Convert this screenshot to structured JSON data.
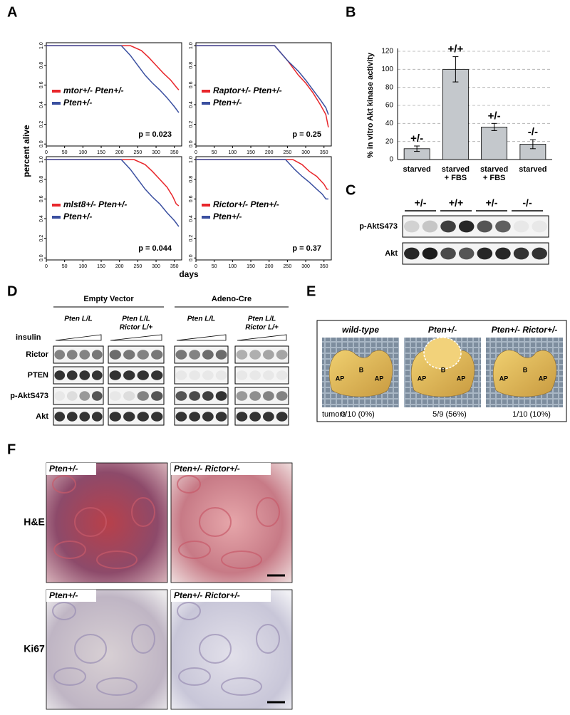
{
  "panel_a": {
    "label": "A",
    "y_axis_label": "percent alive",
    "x_axis_label": "days"
  },
  "panel_b": {
    "label": "B"
  },
  "panel_c": {
    "label": "C",
    "genotypes": [
      "+/-",
      "+/+",
      "+/-",
      "-/-"
    ],
    "rows": [
      "p-AktS473",
      "Akt"
    ]
  },
  "panel_d": {
    "label": "D",
    "treatment": "insulin",
    "rows": [
      "Rictor",
      "PTEN",
      "p-AktS473",
      "Akt"
    ],
    "groups": [
      {
        "title": "Empty Vector",
        "genotypes": [
          [
            "Pten L/L"
          ],
          [
            "Pten L/L",
            "Rictor L/+"
          ]
        ]
      },
      {
        "title": "Adeno-Cre",
        "genotypes": [
          [
            "Pten L/L"
          ],
          [
            "Pten L/L",
            "Rictor L/+"
          ]
        ]
      }
    ]
  },
  "panel_e": {
    "label": "E",
    "row_label": "tumors",
    "region_labels": [
      "AP",
      "B"
    ],
    "columns": [
      {
        "title": "wild-type",
        "tumors": "0/10 (0%)"
      },
      {
        "title": "Pten+/-",
        "tumors": "5/9 (56%)"
      },
      {
        "title": "Pten+/- Rictor+/-",
        "tumors": "1/10 (10%)"
      }
    ]
  },
  "panel_f": {
    "label": "F",
    "columns": [
      "Pten+/-",
      "Pten+/- Rictor+/-"
    ],
    "rows": [
      "H&E",
      "Ki67"
    ]
  },
  "chart_data": [
    {
      "type": "line",
      "annotation": "p = 0.023",
      "xlim": [
        0,
        370
      ],
      "ylim": [
        -0.02,
        1.03
      ],
      "xticks": [
        0,
        50,
        100,
        150,
        200,
        250,
        300,
        350
      ],
      "yticks": [
        {
          "value": 0,
          "label": "0.0"
        },
        {
          "value": 0.2,
          "label": "0.2"
        },
        {
          "value": 0.4,
          "label": "0.4"
        },
        {
          "value": 0.6,
          "label": "0.6"
        },
        {
          "value": 0.8,
          "label": "0.8"
        },
        {
          "value": 1,
          "label": "1.0"
        }
      ],
      "series": [
        {
          "name": "mtor+/- Pten+/-",
          "color": "#e8262b",
          "x": [
            0,
            230,
            260,
            280,
            300,
            320,
            340,
            355,
            362
          ],
          "values": [
            1,
            1,
            0.95,
            0.88,
            0.8,
            0.72,
            0.65,
            0.58,
            0.55
          ]
        },
        {
          "name": "Pten+/-",
          "color": "#3a4fa0",
          "x": [
            0,
            205,
            230,
            250,
            270,
            290,
            310,
            330,
            350,
            362
          ],
          "values": [
            1,
            1,
            0.9,
            0.8,
            0.7,
            0.62,
            0.55,
            0.47,
            0.38,
            0.32
          ]
        }
      ]
    },
    {
      "type": "line",
      "annotation": "p = 0.25",
      "xlim": [
        0,
        370
      ],
      "ylim": [
        -0.02,
        1.03
      ],
      "xticks": [
        0,
        50,
        100,
        150,
        200,
        250,
        300,
        350
      ],
      "yticks": [
        {
          "value": 0,
          "label": "0.0"
        },
        {
          "value": 0.2,
          "label": "0.2"
        },
        {
          "value": 0.4,
          "label": "0.4"
        },
        {
          "value": 0.6,
          "label": "0.6"
        },
        {
          "value": 0.8,
          "label": "0.8"
        },
        {
          "value": 1,
          "label": "1.0"
        }
      ],
      "series": [
        {
          "name": "Raptor+/- Pten+/-",
          "color": "#e8262b",
          "x": [
            0,
            215,
            250,
            280,
            300,
            320,
            340,
            355,
            362
          ],
          "values": [
            1,
            1,
            0.85,
            0.7,
            0.62,
            0.52,
            0.4,
            0.3,
            0.17
          ]
        },
        {
          "name": "Pten+/-",
          "color": "#3a4fa0",
          "x": [
            0,
            215,
            250,
            280,
            300,
            320,
            340,
            355,
            362
          ],
          "values": [
            1,
            1,
            0.85,
            0.74,
            0.65,
            0.55,
            0.45,
            0.37,
            0.3
          ]
        }
      ]
    },
    {
      "type": "line",
      "annotation": "p = 0.044",
      "xlim": [
        0,
        370
      ],
      "ylim": [
        -0.02,
        1.03
      ],
      "xticks": [
        0,
        50,
        100,
        150,
        200,
        250,
        300,
        350
      ],
      "yticks": [
        {
          "value": 0,
          "label": "0.0"
        },
        {
          "value": 0.2,
          "label": "0.2"
        },
        {
          "value": 0.4,
          "label": "0.4"
        },
        {
          "value": 0.6,
          "label": "0.6"
        },
        {
          "value": 0.8,
          "label": "0.8"
        },
        {
          "value": 1,
          "label": "1.0"
        }
      ],
      "series": [
        {
          "name": "mlst8+/- Pten+/-",
          "color": "#e8262b",
          "x": [
            0,
            240,
            270,
            290,
            310,
            330,
            345,
            355,
            362
          ],
          "values": [
            1,
            1,
            0.95,
            0.88,
            0.8,
            0.72,
            0.63,
            0.55,
            0.53
          ]
        },
        {
          "name": "Pten+/-",
          "color": "#3a4fa0",
          "x": [
            0,
            205,
            230,
            250,
            270,
            290,
            310,
            330,
            350,
            362
          ],
          "values": [
            1,
            1,
            0.9,
            0.8,
            0.7,
            0.62,
            0.55,
            0.46,
            0.38,
            0.32
          ]
        }
      ]
    },
    {
      "type": "line",
      "annotation": "p = 0.37",
      "xlim": [
        0,
        370
      ],
      "ylim": [
        -0.02,
        1.03
      ],
      "xticks": [
        0,
        50,
        100,
        150,
        200,
        250,
        300,
        350
      ],
      "yticks": [
        {
          "value": 0,
          "label": "0.0"
        },
        {
          "value": 0.2,
          "label": "0.2"
        },
        {
          "value": 0.4,
          "label": "0.4"
        },
        {
          "value": 0.6,
          "label": "0.6"
        },
        {
          "value": 0.8,
          "label": "0.8"
        },
        {
          "value": 1,
          "label": "1.0"
        }
      ],
      "series": [
        {
          "name": "Rictor+/- Pten+/-",
          "color": "#e8262b",
          "x": [
            0,
            265,
            290,
            310,
            330,
            350,
            358,
            362
          ],
          "values": [
            1,
            1,
            0.95,
            0.88,
            0.83,
            0.75,
            0.7,
            0.7
          ]
        },
        {
          "name": "Pten+/-",
          "color": "#3a4fa0",
          "x": [
            0,
            245,
            270,
            290,
            310,
            330,
            345,
            355,
            362
          ],
          "values": [
            1,
            1,
            0.9,
            0.83,
            0.77,
            0.7,
            0.65,
            0.6,
            0.6
          ]
        }
      ]
    },
    {
      "type": "bar",
      "y_label": "% in vitro Akt kinase activity",
      "color": "#c4c8cc",
      "grid": true,
      "categories": [
        [
          "starved"
        ],
        [
          "starved",
          "+ FBS"
        ],
        [
          "starved",
          "+ FBS"
        ],
        [
          "starved"
        ]
      ],
      "values": [
        12,
        100,
        36,
        17
      ],
      "errors": [
        3,
        14,
        4,
        5
      ],
      "annotations": [
        "+/-",
        "+/+",
        "+/-",
        "-/-"
      ],
      "ylim": [
        0,
        120
      ],
      "yticks": [
        0,
        20,
        40,
        60,
        80,
        100,
        120
      ]
    }
  ]
}
